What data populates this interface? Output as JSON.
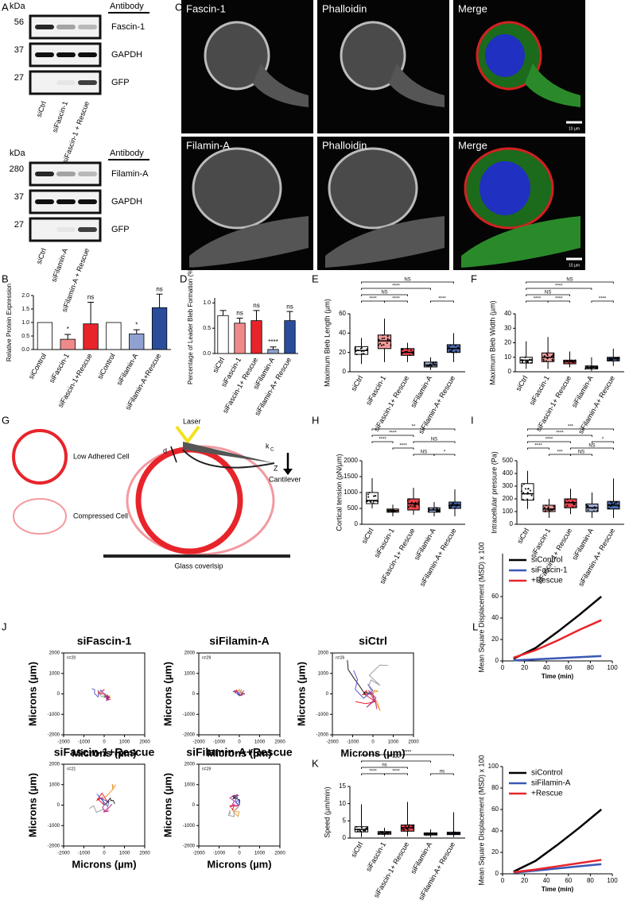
{
  "panel_labels": [
    "A",
    "B",
    "C",
    "D",
    "E",
    "F",
    "G",
    "H",
    "I",
    "J",
    "K",
    "L"
  ],
  "blots": [
    {
      "unit": "kDa",
      "header": "Antibody",
      "markers": [
        "56",
        "37",
        "27"
      ],
      "rows": [
        "Fascin-1",
        "GAPDH",
        "GFP"
      ],
      "lanes": [
        "siCtrl",
        "siFascin-1",
        "siFascin-1 + Rescue"
      ]
    },
    {
      "unit": "kDa",
      "header": "Antibody",
      "markers": [
        "280",
        "37",
        "27"
      ],
      "rows": [
        "Filamin-A",
        "GAPDH",
        "GFP"
      ],
      "lanes": [
        "siCtrl",
        "siFilamin-A",
        "siFilamin-A + Rescue"
      ]
    }
  ],
  "microscopy": {
    "rows": [
      [
        "Fascin-1",
        "Phalloidin",
        "Merge"
      ],
      [
        "Filamin-A",
        "Phalloidin",
        "Merge"
      ]
    ],
    "scale_bars": [
      "10 µm",
      "10 µm"
    ]
  },
  "diagram": {
    "legend": [
      "Low Adhered Cell",
      "Compressed Cell"
    ],
    "laser": "Laser",
    "d": "d",
    "k": "k",
    "k_sub": "C",
    "z": "Z",
    "cantilever": "Cantilever",
    "surface": "Glass coverlsip"
  },
  "chart_data": [
    {
      "type": "bar",
      "ylabel": "Relative Protein Expression",
      "categories": [
        "siControl",
        "siFascin-1",
        "siFascin-1+Rescue",
        "siControl",
        "siFilamin-A",
        "siFilamin-A+Rescue"
      ],
      "values": [
        1,
        0.38,
        0.95,
        1,
        0.58,
        1.55
      ],
      "errors": [
        0,
        0.18,
        0.8,
        0,
        0.15,
        0.5
      ],
      "colors": [
        "#ffffff",
        "#f08a8a",
        "#e8242b",
        "#ffffff",
        "#8fa1d0",
        "#2a4d9b"
      ],
      "annotations": [
        null,
        "*",
        "ns",
        null,
        "*",
        "ns"
      ],
      "ylim": [
        0,
        2
      ],
      "yticks": [
        {
          "value": 0,
          "label": "0.0"
        },
        {
          "value": 0.5,
          "label": "0.5"
        },
        {
          "value": 1,
          "label": "1.0"
        },
        {
          "value": 1.5,
          "label": "1.5"
        },
        {
          "value": 2,
          "label": "2.0"
        }
      ]
    },
    {
      "type": "bar",
      "ylabel": "Percentage of Leader Bleb Formation (%)",
      "categories": [
        "siCtrl",
        "siFascin-1",
        "siFascin-1+ Rescue",
        "siFilamin-A",
        "siFilamin-A+ Rescue"
      ],
      "values": [
        0.75,
        0.6,
        0.65,
        0.08,
        0.65
      ],
      "errors": [
        0.1,
        0.1,
        0.2,
        0.05,
        0.18
      ],
      "colors": [
        "#ffffff",
        "#f08a8a",
        "#e8242b",
        "#8fa1d0",
        "#2a4d9b"
      ],
      "annotations": [
        null,
        "ns",
        "ns",
        "****",
        "ns"
      ],
      "ylim": [
        0,
        1.1
      ],
      "yticks": [
        {
          "value": 0,
          "label": "0.0"
        },
        {
          "value": 0.5,
          "label": "0.5"
        },
        {
          "value": 1,
          "label": "1.0"
        }
      ]
    },
    {
      "type": "box",
      "ylabel": "Maximum Bleb Length (µm)",
      "categories": [
        "siCtrl",
        "siFascin-1",
        "siFascin-1+ Rescue",
        "siFilamin-A",
        "siFilamin-A+ Rescue"
      ],
      "boxes": [
        {
          "low": 8,
          "q1": 18,
          "median": 22,
          "q3": 26,
          "high": 35
        },
        {
          "low": 10,
          "q1": 24,
          "median": 32,
          "q3": 38,
          "high": 55
        },
        {
          "low": 10,
          "q1": 17,
          "median": 20,
          "q3": 24,
          "high": 30
        },
        {
          "low": 2,
          "q1": 5,
          "median": 7,
          "q3": 10,
          "high": 15
        },
        {
          "low": 10,
          "q1": 20,
          "median": 24,
          "q3": 28,
          "high": 40
        }
      ],
      "colors": [
        "#ffffff",
        "#f08a8a",
        "#e8242b",
        "#8fa1d0",
        "#2a4d9b"
      ],
      "significance": [
        "NS",
        "****",
        "NS",
        "****",
        "****",
        "****"
      ],
      "ylim": [
        0,
        60
      ],
      "yticks": [
        0,
        20,
        40,
        60
      ]
    },
    {
      "type": "box",
      "ylabel": "Maximum Bleb Width (µm)",
      "categories": [
        "siCtrl",
        "siFascin-1",
        "siFascin-1+ Rescue",
        "siFilamin-A",
        "siFilamin-A+ Rescue"
      ],
      "boxes": [
        {
          "low": 2,
          "q1": 6,
          "median": 8,
          "q3": 10,
          "high": 21
        },
        {
          "low": 2,
          "q1": 7,
          "median": 10,
          "q3": 13,
          "high": 24
        },
        {
          "low": 3,
          "q1": 5.5,
          "median": 7,
          "q3": 8,
          "high": 14
        },
        {
          "low": 0.5,
          "q1": 2,
          "median": 3,
          "q3": 4,
          "high": 10
        },
        {
          "low": 4,
          "q1": 7.5,
          "median": 9,
          "q3": 10,
          "high": 16
        }
      ],
      "colors": [
        "#ffffff",
        "#f08a8a",
        "#e8242b",
        "#8fa1d0",
        "#2a4d9b"
      ],
      "significance": [
        "NS",
        "****",
        "NS",
        "****",
        "****",
        "****"
      ],
      "ylim": [
        0,
        40
      ],
      "yticks": [
        0,
        10,
        20,
        30,
        40
      ]
    },
    {
      "type": "box",
      "ylabel": "Cortical tension (pN/µm)",
      "categories": [
        "siCtrl",
        "siFascin-1",
        "siFascin-1+ Rescue",
        "siFilamin-A",
        "siFilamin-A+ Rescue"
      ],
      "boxes": [
        {
          "low": 500,
          "q1": 650,
          "median": 750,
          "q3": 1000,
          "high": 1450
        },
        {
          "low": 250,
          "q1": 380,
          "median": 430,
          "q3": 480,
          "high": 620
        },
        {
          "low": 300,
          "q1": 450,
          "median": 650,
          "q3": 800,
          "high": 1150
        },
        {
          "low": 250,
          "q1": 380,
          "median": 450,
          "q3": 520,
          "high": 700
        },
        {
          "low": 250,
          "q1": 500,
          "median": 600,
          "q3": 700,
          "high": 1100
        }
      ],
      "colors": [
        "#ffffff",
        "#f08a8a",
        "#e8242b",
        "#8fa1d0",
        "#2a4d9b"
      ],
      "significance": [
        "**",
        "****",
        "****",
        "****",
        "NS",
        "NS",
        "*"
      ],
      "ylim": [
        0,
        2000
      ],
      "yticks": [
        0,
        500,
        1000,
        1500,
        2000
      ]
    },
    {
      "type": "box",
      "ylabel": "Intracellular pressure (Pa)",
      "categories": [
        "siCtrl",
        "siFascin-1",
        "siFascin-1+ Rescue",
        "siFilamin-A",
        "siFilamin-A+ Rescue"
      ],
      "boxes": [
        {
          "low": 120,
          "q1": 190,
          "median": 240,
          "q3": 320,
          "high": 420
        },
        {
          "low": 50,
          "q1": 100,
          "median": 120,
          "q3": 150,
          "high": 200
        },
        {
          "low": 80,
          "q1": 130,
          "median": 170,
          "q3": 200,
          "high": 280
        },
        {
          "low": 50,
          "q1": 100,
          "median": 130,
          "q3": 160,
          "high": 250
        },
        {
          "low": 50,
          "q1": 120,
          "median": 150,
          "q3": 180,
          "high": 360
        }
      ],
      "colors": [
        "#ffffff",
        "#f08a8a",
        "#e8242b",
        "#8fa1d0",
        "#2a4d9b"
      ],
      "significance": [
        "***",
        "****",
        "****",
        "****",
        "*",
        "***",
        "NS",
        "NS"
      ],
      "ylim": [
        0,
        500
      ],
      "yticks": [
        0,
        100,
        200,
        300,
        400,
        500
      ]
    },
    {
      "type": "box",
      "ylabel": "Speed (µm/min)",
      "categories": [
        "siCtrl",
        "siFascin-1",
        "siFascin-1+ Rescue",
        "siFilamin-A",
        "siFilamin-A+ Rescue"
      ],
      "boxes": [
        {
          "low": 0.3,
          "q1": 1.8,
          "median": 2.5,
          "q3": 3.3,
          "high": 9.8
        },
        {
          "low": 0.4,
          "q1": 1.1,
          "median": 1.5,
          "q3": 1.9,
          "high": 3
        },
        {
          "low": 0.5,
          "q1": 2,
          "median": 3,
          "q3": 3.8,
          "high": 10.5
        },
        {
          "low": 0.3,
          "q1": 0.9,
          "median": 1.2,
          "q3": 1.5,
          "high": 2.5
        },
        {
          "low": 0.3,
          "q1": 1,
          "median": 1.3,
          "q3": 1.7,
          "high": 7.5
        }
      ],
      "colors": [
        "#ffffff",
        "#f08a8a",
        "#e8242b",
        "#8fa1d0",
        "#2a4d9b"
      ],
      "significance": [
        "****",
        "****",
        "ns",
        "****",
        "****",
        "ns"
      ],
      "ylim": [
        0,
        15
      ],
      "yticks": [
        0,
        5,
        10,
        15
      ]
    },
    {
      "type": "trajectory",
      "title": "siFascin-1",
      "n_label": "n=20",
      "xlabel": "Microns (µm)",
      "ylabel": "Microns (µm)",
      "xlim": [
        -2000,
        2000
      ],
      "ylim": [
        -2000,
        2000
      ],
      "xticks": [
        -2000,
        -1000,
        0,
        1000,
        2000
      ],
      "yticks": [
        -2000,
        -1000,
        0,
        1000,
        2000
      ]
    },
    {
      "type": "trajectory",
      "title": "siFilamin-A",
      "n_label": "n=29",
      "xlabel": "Microns (µm)",
      "ylabel": "Microns (µm)",
      "xlim": [
        -2000,
        2000
      ],
      "ylim": [
        -2000,
        2000
      ],
      "xticks": [
        -2000,
        -1000,
        0,
        1000,
        2000
      ],
      "yticks": [
        -2000,
        -1000,
        0,
        1000,
        2000
      ]
    },
    {
      "type": "trajectory",
      "title": "siCtrl",
      "n_label": "n=26",
      "xlabel": "Microns (µm)",
      "ylabel": "Microns (µm)",
      "xlim": [
        -2000,
        2000
      ],
      "ylim": [
        -2000,
        2000
      ],
      "xticks": [
        -2000,
        -1000,
        0,
        1000,
        2000
      ],
      "yticks": [
        -2000,
        -1000,
        0,
        1000,
        2000
      ]
    },
    {
      "type": "trajectory",
      "title": "siFascin-1+Rescue",
      "n_label": "n=21",
      "xlabel": "Microns (µm)",
      "ylabel": "Microns (µm)",
      "xlim": [
        -2000,
        2000
      ],
      "ylim": [
        -2000,
        2000
      ],
      "xticks": [
        -2000,
        -1000,
        0,
        1000,
        2000
      ],
      "yticks": [
        -2000,
        -1000,
        0,
        1000,
        2000
      ]
    },
    {
      "type": "trajectory",
      "title": "siFilamin-A+Rescue",
      "n_label": "n=29",
      "xlabel": "Microns (µm)",
      "ylabel": "Microns (µm)",
      "xlim": [
        -2000,
        2000
      ],
      "ylim": [
        -2000,
        2000
      ],
      "xticks": [
        -2000,
        -1000,
        0,
        1000,
        2000
      ],
      "yticks": [
        -2000,
        -1000,
        0,
        1000,
        2000
      ]
    },
    {
      "type": "line",
      "xlabel": "Time (min)",
      "ylabel": "Mean Square Displacement (MSD) x 100",
      "x": [
        10,
        30,
        50,
        70,
        90
      ],
      "series": [
        {
          "name": "siControl",
          "color": "#000000",
          "values": [
            2,
            12,
            27,
            43,
            60
          ]
        },
        {
          "name": "siFascin-1",
          "color": "#3a57b5",
          "values": [
            0.5,
            1.5,
            2.5,
            3.5,
            4.5
          ]
        },
        {
          "name": "+Rescue",
          "color": "#e8242b",
          "values": [
            3,
            10,
            19,
            29,
            38
          ]
        }
      ],
      "xlim": [
        0,
        100
      ],
      "ylim": [
        0,
        100
      ],
      "xticks": [
        0,
        20,
        40,
        60,
        80,
        100
      ],
      "yticks": [
        0,
        20,
        40,
        60
      ]
    },
    {
      "type": "line",
      "xlabel": "Time (min)",
      "ylabel": "Mean Square Displacement (MSD) x 100",
      "x": [
        10,
        30,
        50,
        70,
        90
      ],
      "series": [
        {
          "name": "siControl",
          "color": "#000000",
          "values": [
            2,
            12,
            27,
            43,
            60
          ]
        },
        {
          "name": "siFilamin-A",
          "color": "#3a57b5",
          "values": [
            1,
            3,
            5,
            7,
            9
          ]
        },
        {
          "name": "+Rescue",
          "color": "#e8242b",
          "values": [
            1.5,
            4,
            7,
            10,
            13
          ]
        }
      ],
      "xlim": [
        0,
        100
      ],
      "ylim": [
        0,
        100
      ],
      "xticks": [
        0,
        20,
        40,
        60,
        80,
        100
      ],
      "yticks": [
        0,
        20,
        40,
        60,
        80,
        100
      ]
    }
  ]
}
